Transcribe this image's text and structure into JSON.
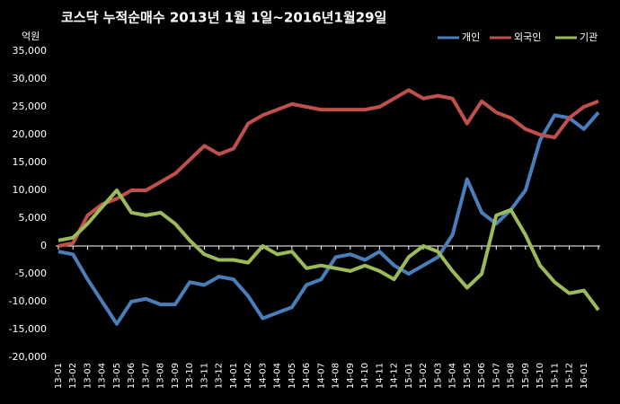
{
  "chart_data": {
    "type": "line",
    "title": "코스닥  누적순매수 2013년 1월 1일~2016년1월29일",
    "y_unit": "억원",
    "categories": [
      "13-01",
      "13-02",
      "13-03",
      "13-04",
      "13-05",
      "13-06",
      "13-07",
      "13-08",
      "13-09",
      "13-10",
      "13-11",
      "13-12",
      "14-01",
      "14-02",
      "14-03",
      "14-04",
      "14-05",
      "14-06",
      "14-07",
      "14-08",
      "14-09",
      "14-10",
      "14-11",
      "14-12",
      "15-01",
      "15-02",
      "15-03",
      "15-04",
      "15-05",
      "15-06",
      "15-07",
      "15-08",
      "15-09",
      "15-10",
      "15-11",
      "15-12",
      "16-01",
      null
    ],
    "series": [
      {
        "name": "개인",
        "color": "#4a7ebb",
        "values": [
          -1000,
          -1500,
          -6000,
          -10000,
          -14000,
          -10000,
          -9500,
          -10500,
          -10500,
          -6500,
          -7000,
          -5500,
          -6000,
          -9000,
          -13000,
          -12000,
          -11000,
          -7000,
          -6000,
          -2000,
          -1500,
          -2500,
          -1000,
          -3500,
          -5000,
          -3500,
          -2000,
          2000,
          12000,
          6000,
          4000,
          6500,
          10000,
          19000,
          23500,
          23000,
          21000,
          24000
        ]
      },
      {
        "name": "외국인",
        "color": "#c0504d",
        "values": [
          0,
          500,
          5500,
          7500,
          8500,
          10000,
          10000,
          11500,
          13000,
          15500,
          18000,
          16500,
          17500,
          22000,
          23500,
          24500,
          25500,
          25000,
          24500,
          24500,
          24500,
          24500,
          25000,
          26500,
          28000,
          26500,
          27000,
          26500,
          22000,
          26000,
          24000,
          23000,
          21000,
          20000,
          19500,
          23000,
          25000,
          26000
        ]
      },
      {
        "name": "기관",
        "color": "#9bbb59",
        "values": [
          1000,
          1500,
          4000,
          7000,
          10000,
          6000,
          5500,
          6000,
          4000,
          1000,
          -1500,
          -2500,
          -2500,
          -3000,
          0,
          -1500,
          -1000,
          -4000,
          -3500,
          -4000,
          -4500,
          -3500,
          -4500,
          -6000,
          -2000,
          0,
          -1000,
          -4500,
          -7500,
          -5000,
          5500,
          6500,
          2000,
          -3500,
          -6500,
          -8500,
          -8000,
          -11500
        ]
      }
    ],
    "ylim": [
      -20000,
      35000
    ],
    "yticks": [
      {
        "value": -20000,
        "label": "-20,000"
      },
      {
        "value": -15000,
        "label": "-15,000"
      },
      {
        "value": -10000,
        "label": "-10,000"
      },
      {
        "value": -5000,
        "label": "-5,000"
      },
      0,
      {
        "value": 5000,
        "label": "5,000"
      },
      {
        "value": 10000,
        "label": "10,000"
      },
      {
        "value": 15000,
        "label": "15,000"
      },
      {
        "value": 20000,
        "label": "20,000"
      },
      {
        "value": 25000,
        "label": "25,000"
      },
      {
        "value": 30000,
        "label": "30,000"
      },
      {
        "value": 35000,
        "label": "35,000"
      }
    ],
    "grid": false,
    "legend": "top-right"
  }
}
